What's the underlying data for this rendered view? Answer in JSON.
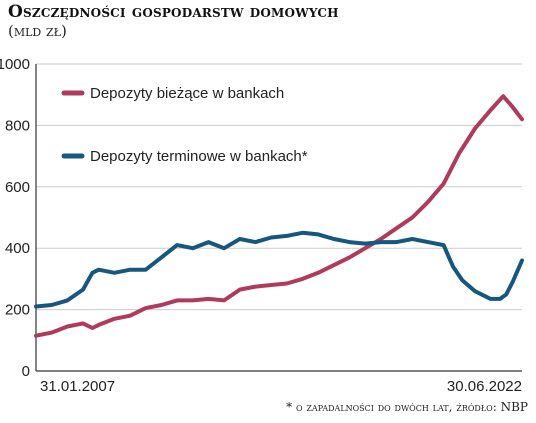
{
  "chart_data": {
    "type": "line",
    "title": "Oszczędności gospodarstw domowych",
    "subtitle": "(mld zł)",
    "footnote": "* o zapadalności do dwóch lat, źródło: NBP",
    "x_start_label": "31.01.2007",
    "x_end_label": "30.06.2022",
    "x_range": [
      2007.0,
      2022.5
    ],
    "ylim": [
      0,
      1000
    ],
    "yticks": [
      0,
      200,
      400,
      600,
      800,
      1000
    ],
    "grid": true,
    "legend_position": "top-left",
    "series": [
      {
        "name": "Depozyty bieżące w bankach",
        "color": "#b03a5b",
        "x": [
          2007.0,
          2007.5,
          2008.0,
          2008.5,
          2008.8,
          2009.0,
          2009.5,
          2010.0,
          2010.5,
          2011.0,
          2011.5,
          2012.0,
          2012.5,
          2013.0,
          2013.5,
          2014.0,
          2014.5,
          2015.0,
          2015.5,
          2016.0,
          2016.5,
          2017.0,
          2017.5,
          2018.0,
          2018.5,
          2019.0,
          2019.5,
          2020.0,
          2020.2,
          2020.5,
          2021.0,
          2021.5,
          2021.9,
          2022.2,
          2022.5
        ],
        "values": [
          115,
          125,
          145,
          155,
          140,
          150,
          170,
          180,
          205,
          215,
          230,
          230,
          235,
          230,
          265,
          275,
          280,
          285,
          300,
          320,
          345,
          370,
          400,
          430,
          465,
          500,
          550,
          610,
          650,
          710,
          790,
          850,
          895,
          860,
          820
        ]
      },
      {
        "name": "Depozyty terminowe w bankach*",
        "color": "#15577e",
        "x": [
          2007.0,
          2007.5,
          2008.0,
          2008.5,
          2008.8,
          2009.0,
          2009.5,
          2010.0,
          2010.5,
          2011.0,
          2011.5,
          2012.0,
          2012.5,
          2013.0,
          2013.5,
          2014.0,
          2014.5,
          2015.0,
          2015.5,
          2016.0,
          2016.5,
          2017.0,
          2017.5,
          2018.0,
          2018.5,
          2019.0,
          2019.5,
          2020.0,
          2020.3,
          2020.6,
          2021.0,
          2021.5,
          2021.8,
          2022.0,
          2022.2,
          2022.5
        ],
        "values": [
          210,
          215,
          230,
          265,
          320,
          330,
          320,
          330,
          330,
          370,
          410,
          400,
          420,
          400,
          430,
          420,
          435,
          440,
          450,
          445,
          430,
          420,
          415,
          420,
          420,
          430,
          420,
          410,
          340,
          295,
          260,
          235,
          235,
          250,
          290,
          360
        ]
      }
    ]
  }
}
